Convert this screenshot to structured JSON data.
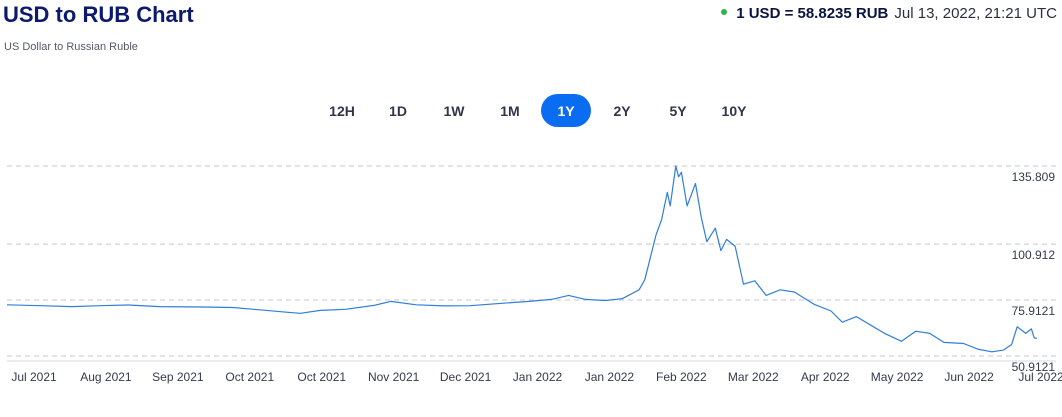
{
  "header": {
    "title": "USD to RUB Chart",
    "subtitle": "US Dollar to Russian Ruble",
    "rate_value": "1 USD = 58.8235 RUB",
    "rate_time": "Jul 13, 2022, 21:21 UTC",
    "live_color": "#2cb34a"
  },
  "ranges": {
    "items": [
      "12H",
      "1D",
      "1W",
      "1M",
      "1Y",
      "2Y",
      "5Y",
      "10Y"
    ],
    "active": "1Y",
    "active_color": "#0a6cf0"
  },
  "chart_data": {
    "type": "line",
    "series": [
      {
        "color": "#2f7fd8",
        "points": [
          [
            "2021-07-13",
            73.8
          ],
          [
            "2021-07-25",
            73.4
          ],
          [
            "2021-08-05",
            73.0
          ],
          [
            "2021-08-15",
            73.4
          ],
          [
            "2021-08-25",
            73.7
          ],
          [
            "2021-09-05",
            73.0
          ],
          [
            "2021-09-20",
            72.8
          ],
          [
            "2021-10-01",
            72.6
          ],
          [
            "2021-10-10",
            71.6
          ],
          [
            "2021-10-20",
            70.5
          ],
          [
            "2021-10-25",
            70.0
          ],
          [
            "2021-11-01",
            71.3
          ],
          [
            "2021-11-10",
            71.8
          ],
          [
            "2021-11-20",
            73.5
          ],
          [
            "2021-11-26",
            75.3
          ],
          [
            "2021-12-05",
            73.8
          ],
          [
            "2021-12-15",
            73.3
          ],
          [
            "2021-12-24",
            73.4
          ],
          [
            "2022-01-05",
            74.5
          ],
          [
            "2022-01-14",
            75.3
          ],
          [
            "2022-01-22",
            76.2
          ],
          [
            "2022-01-28",
            78.0
          ],
          [
            "2022-02-03",
            76.2
          ],
          [
            "2022-02-10",
            75.7
          ],
          [
            "2022-02-16",
            76.5
          ],
          [
            "2022-02-22",
            80.5
          ],
          [
            "2022-02-24",
            85.0
          ],
          [
            "2022-02-28",
            105.0
          ],
          [
            "2022-03-02",
            112.0
          ],
          [
            "2022-03-04",
            124.0
          ],
          [
            "2022-03-05",
            118.0
          ],
          [
            "2022-03-07",
            135.809
          ],
          [
            "2022-03-08",
            131.0
          ],
          [
            "2022-03-09",
            133.0
          ],
          [
            "2022-03-11",
            118.0
          ],
          [
            "2022-03-14",
            128.0
          ],
          [
            "2022-03-16",
            113.0
          ],
          [
            "2022-03-18",
            102.0
          ],
          [
            "2022-03-21",
            108.0
          ],
          [
            "2022-03-23",
            98.0
          ],
          [
            "2022-03-25",
            103.0
          ],
          [
            "2022-03-28",
            100.0
          ],
          [
            "2022-03-31",
            83.0
          ],
          [
            "2022-04-04",
            84.5
          ],
          [
            "2022-04-08",
            78.0
          ],
          [
            "2022-04-13",
            80.5
          ],
          [
            "2022-04-18",
            79.5
          ],
          [
            "2022-04-25",
            74.0
          ],
          [
            "2022-05-01",
            71.0
          ],
          [
            "2022-05-05",
            66.0
          ],
          [
            "2022-05-10",
            68.5
          ],
          [
            "2022-05-16",
            64.0
          ],
          [
            "2022-05-20",
            61.0
          ],
          [
            "2022-05-26",
            57.5
          ],
          [
            "2022-05-31",
            62.0
          ],
          [
            "2022-06-05",
            61.0
          ],
          [
            "2022-06-10",
            57.0
          ],
          [
            "2022-06-17",
            56.5
          ],
          [
            "2022-06-22",
            54.0
          ],
          [
            "2022-06-27",
            52.8
          ],
          [
            "2022-07-01",
            53.5
          ],
          [
            "2022-07-04",
            56.0
          ],
          [
            "2022-07-06",
            64.0
          ],
          [
            "2022-07-09",
            61.0
          ],
          [
            "2022-07-11",
            63.0
          ],
          [
            "2022-07-12",
            59.0
          ],
          [
            "2022-07-13",
            58.8235
          ]
        ]
      }
    ],
    "x_ticks": [
      [
        "2021-07-13",
        "Jul 2021"
      ],
      [
        "2021-08-12",
        "Aug 2021"
      ],
      [
        "2021-09-11",
        "Sep 2021"
      ],
      [
        "2021-10-11",
        "Oct 2021"
      ],
      [
        "2021-11-09",
        "Oct 2021"
      ],
      [
        "2021-12-09",
        "Nov 2021"
      ],
      [
        "2022-01-08",
        "Dec 2021"
      ],
      [
        "2022-02-07",
        "Jan 2022"
      ],
      [
        "2022-03-09",
        "Jan 2022"
      ],
      [
        "2022-04-08",
        "Feb 2022"
      ],
      [
        "2022-05-08",
        "Mar 2022"
      ],
      [
        "2022-06-07",
        "Apr 2022"
      ],
      [
        "2022-07-07",
        "May 2022"
      ],
      [
        "2022-08-06",
        "Jun 2022"
      ],
      [
        "2022-09-05",
        "Jul 2022"
      ]
    ],
    "y_ticks": [
      135.809,
      100.912,
      75.9121,
      50.9121
    ],
    "y_tick_labels": [
      "135.809",
      "100.912",
      "75.9121",
      "50.9121"
    ],
    "ylim": [
      50.9121,
      135.809
    ],
    "grid": "dashed horizontal"
  }
}
